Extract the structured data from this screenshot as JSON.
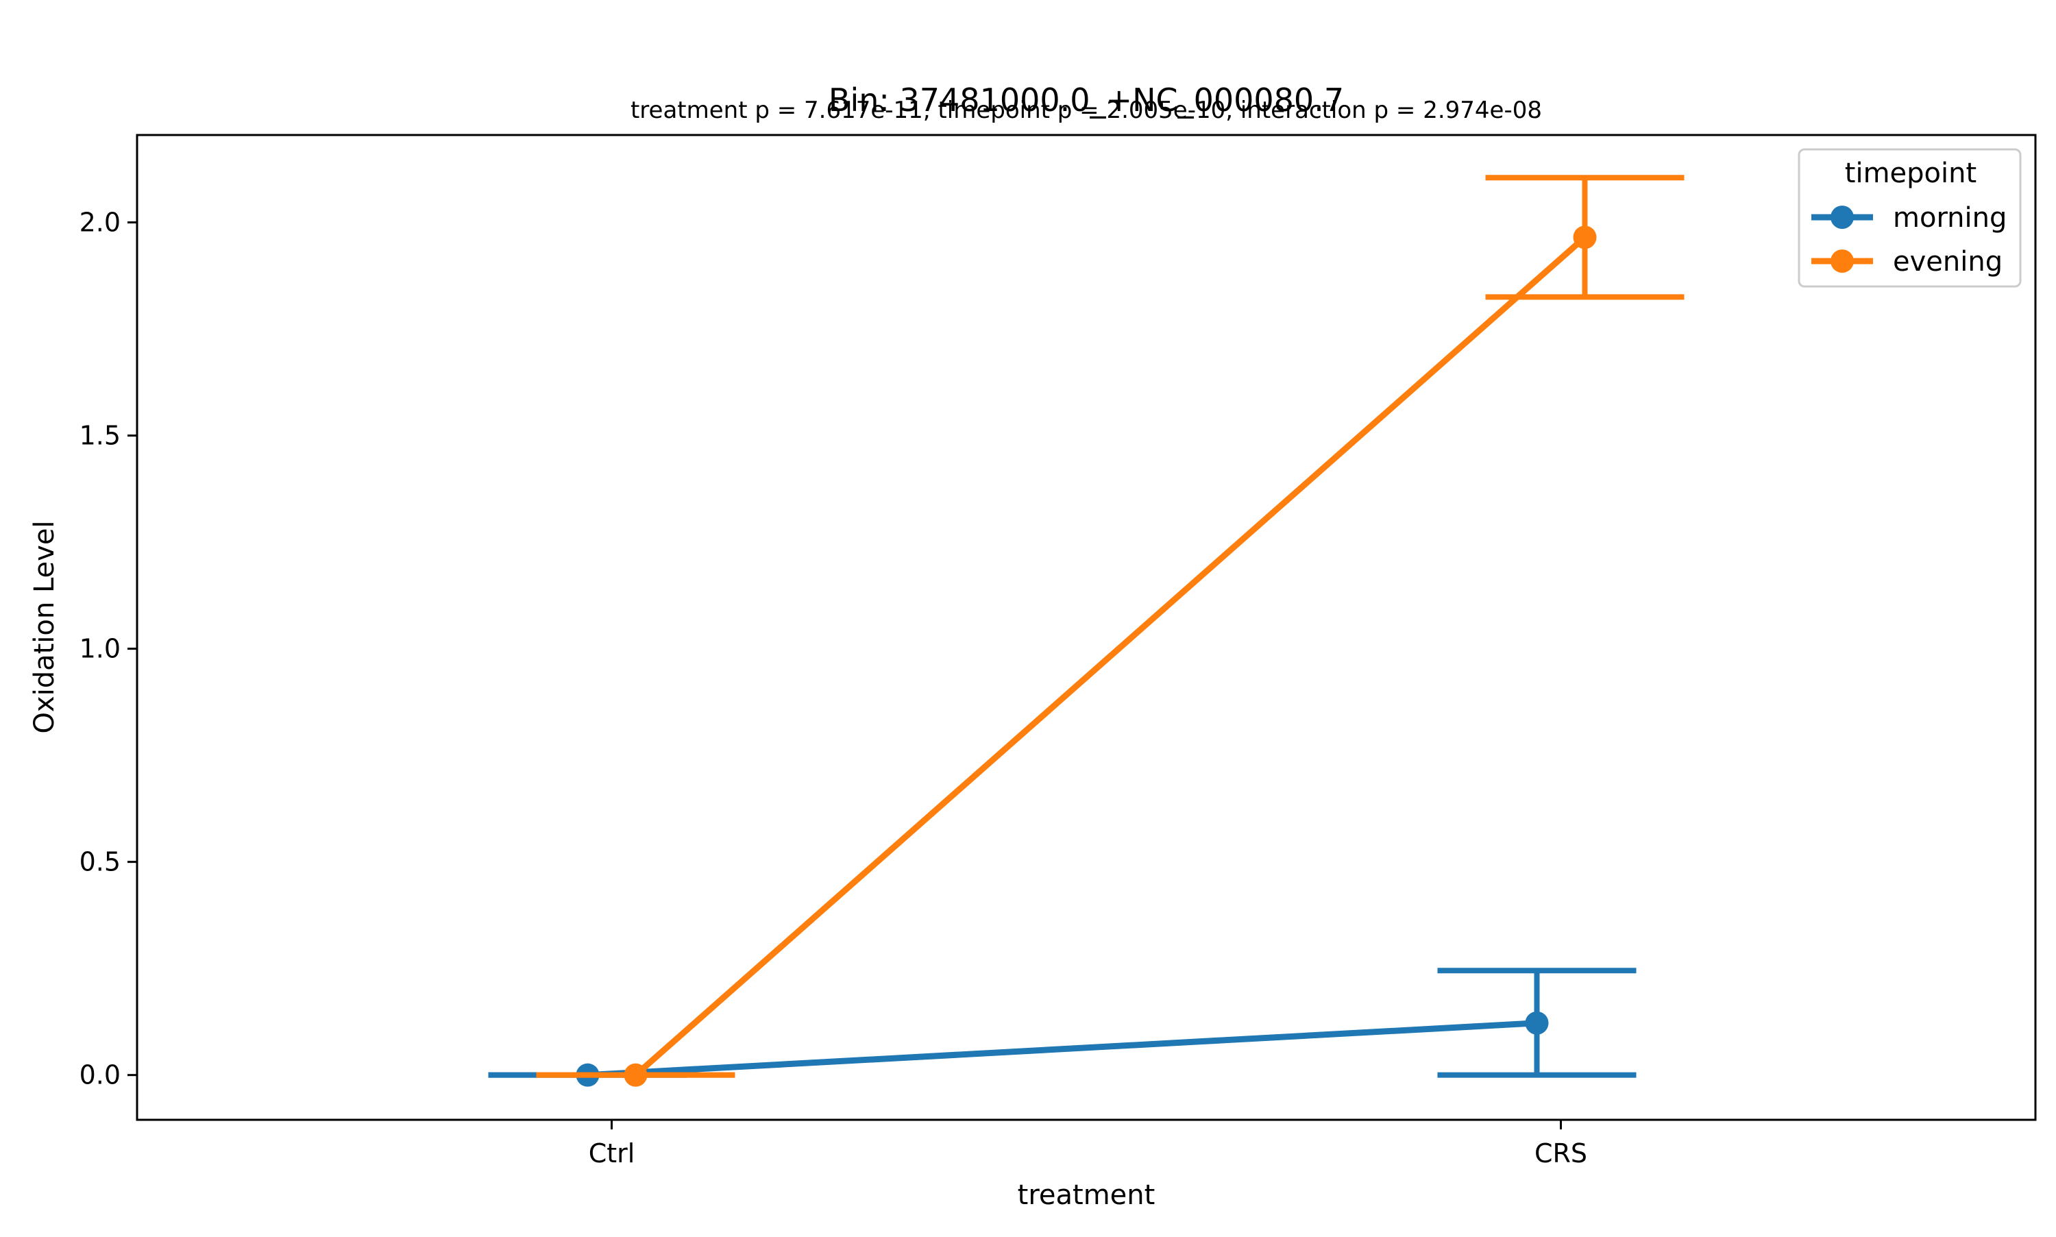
{
  "chart_data": {
    "type": "line",
    "title": "Bin: 37481000.0_+NC_000080.7",
    "subtitle": "treatment p = 7.617e-11, timepoint p = 2.005e-10, interaction p = 2.974e-08",
    "xlabel": "treatment",
    "ylabel": "Oxidation Level",
    "categories": [
      "Ctrl",
      "CRS"
    ],
    "ylim": [
      -0.105,
      2.205
    ],
    "yticks": [
      0.0,
      0.5,
      1.0,
      1.5,
      2.0
    ],
    "ytick_labels": [
      "0.0",
      "0.5",
      "1.0",
      "1.5",
      "2.0"
    ],
    "grid": false,
    "legend": {
      "title": "timepoint",
      "placement": "top-right"
    },
    "series": [
      {
        "name": "morning",
        "color": "#1f77b4",
        "values": [
          0.0,
          0.122
        ],
        "error_low": [
          0.0,
          0.0
        ],
        "error_high": [
          0.0,
          0.245
        ]
      },
      {
        "name": "evening",
        "color": "#ff7f0e",
        "values": [
          0.0,
          1.965
        ],
        "error_low": [
          0.0,
          1.825
        ],
        "error_high": [
          0.0,
          2.105
        ]
      }
    ]
  }
}
